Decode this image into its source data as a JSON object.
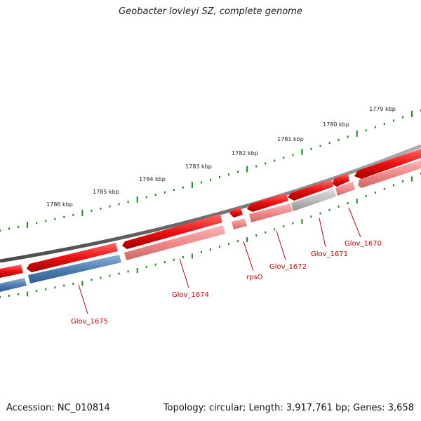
{
  "title": "Geobacter lovleyi SZ, complete genome",
  "footer": {
    "accession": "Accession: NC_010814",
    "summary": "Topology: circular; Length: 3,917,761 bp; Genes: 3,658"
  },
  "ruler_labels": [
    "1779 kbp",
    "1780 kbp",
    "1781 kbp",
    "1782 kbp",
    "1783 kbp",
    "1784 kbp",
    "1785 kbp",
    "1786 kbp"
  ],
  "gene_labels": [
    "Glov_1670",
    "Glov_1671",
    "Glov_1672",
    "rpsO",
    "Glov_1674",
    "Glov_1675"
  ],
  "colors": {
    "backbone": "#7a7a7a",
    "feature_red": "#ee1111",
    "feature_light_red": "#f08a8a",
    "feature_grey": "#bdbdbd",
    "feature_blue": "#4f80b4",
    "ruler_ticks": "#1b8a1b",
    "label_red": "#cc0000"
  }
}
